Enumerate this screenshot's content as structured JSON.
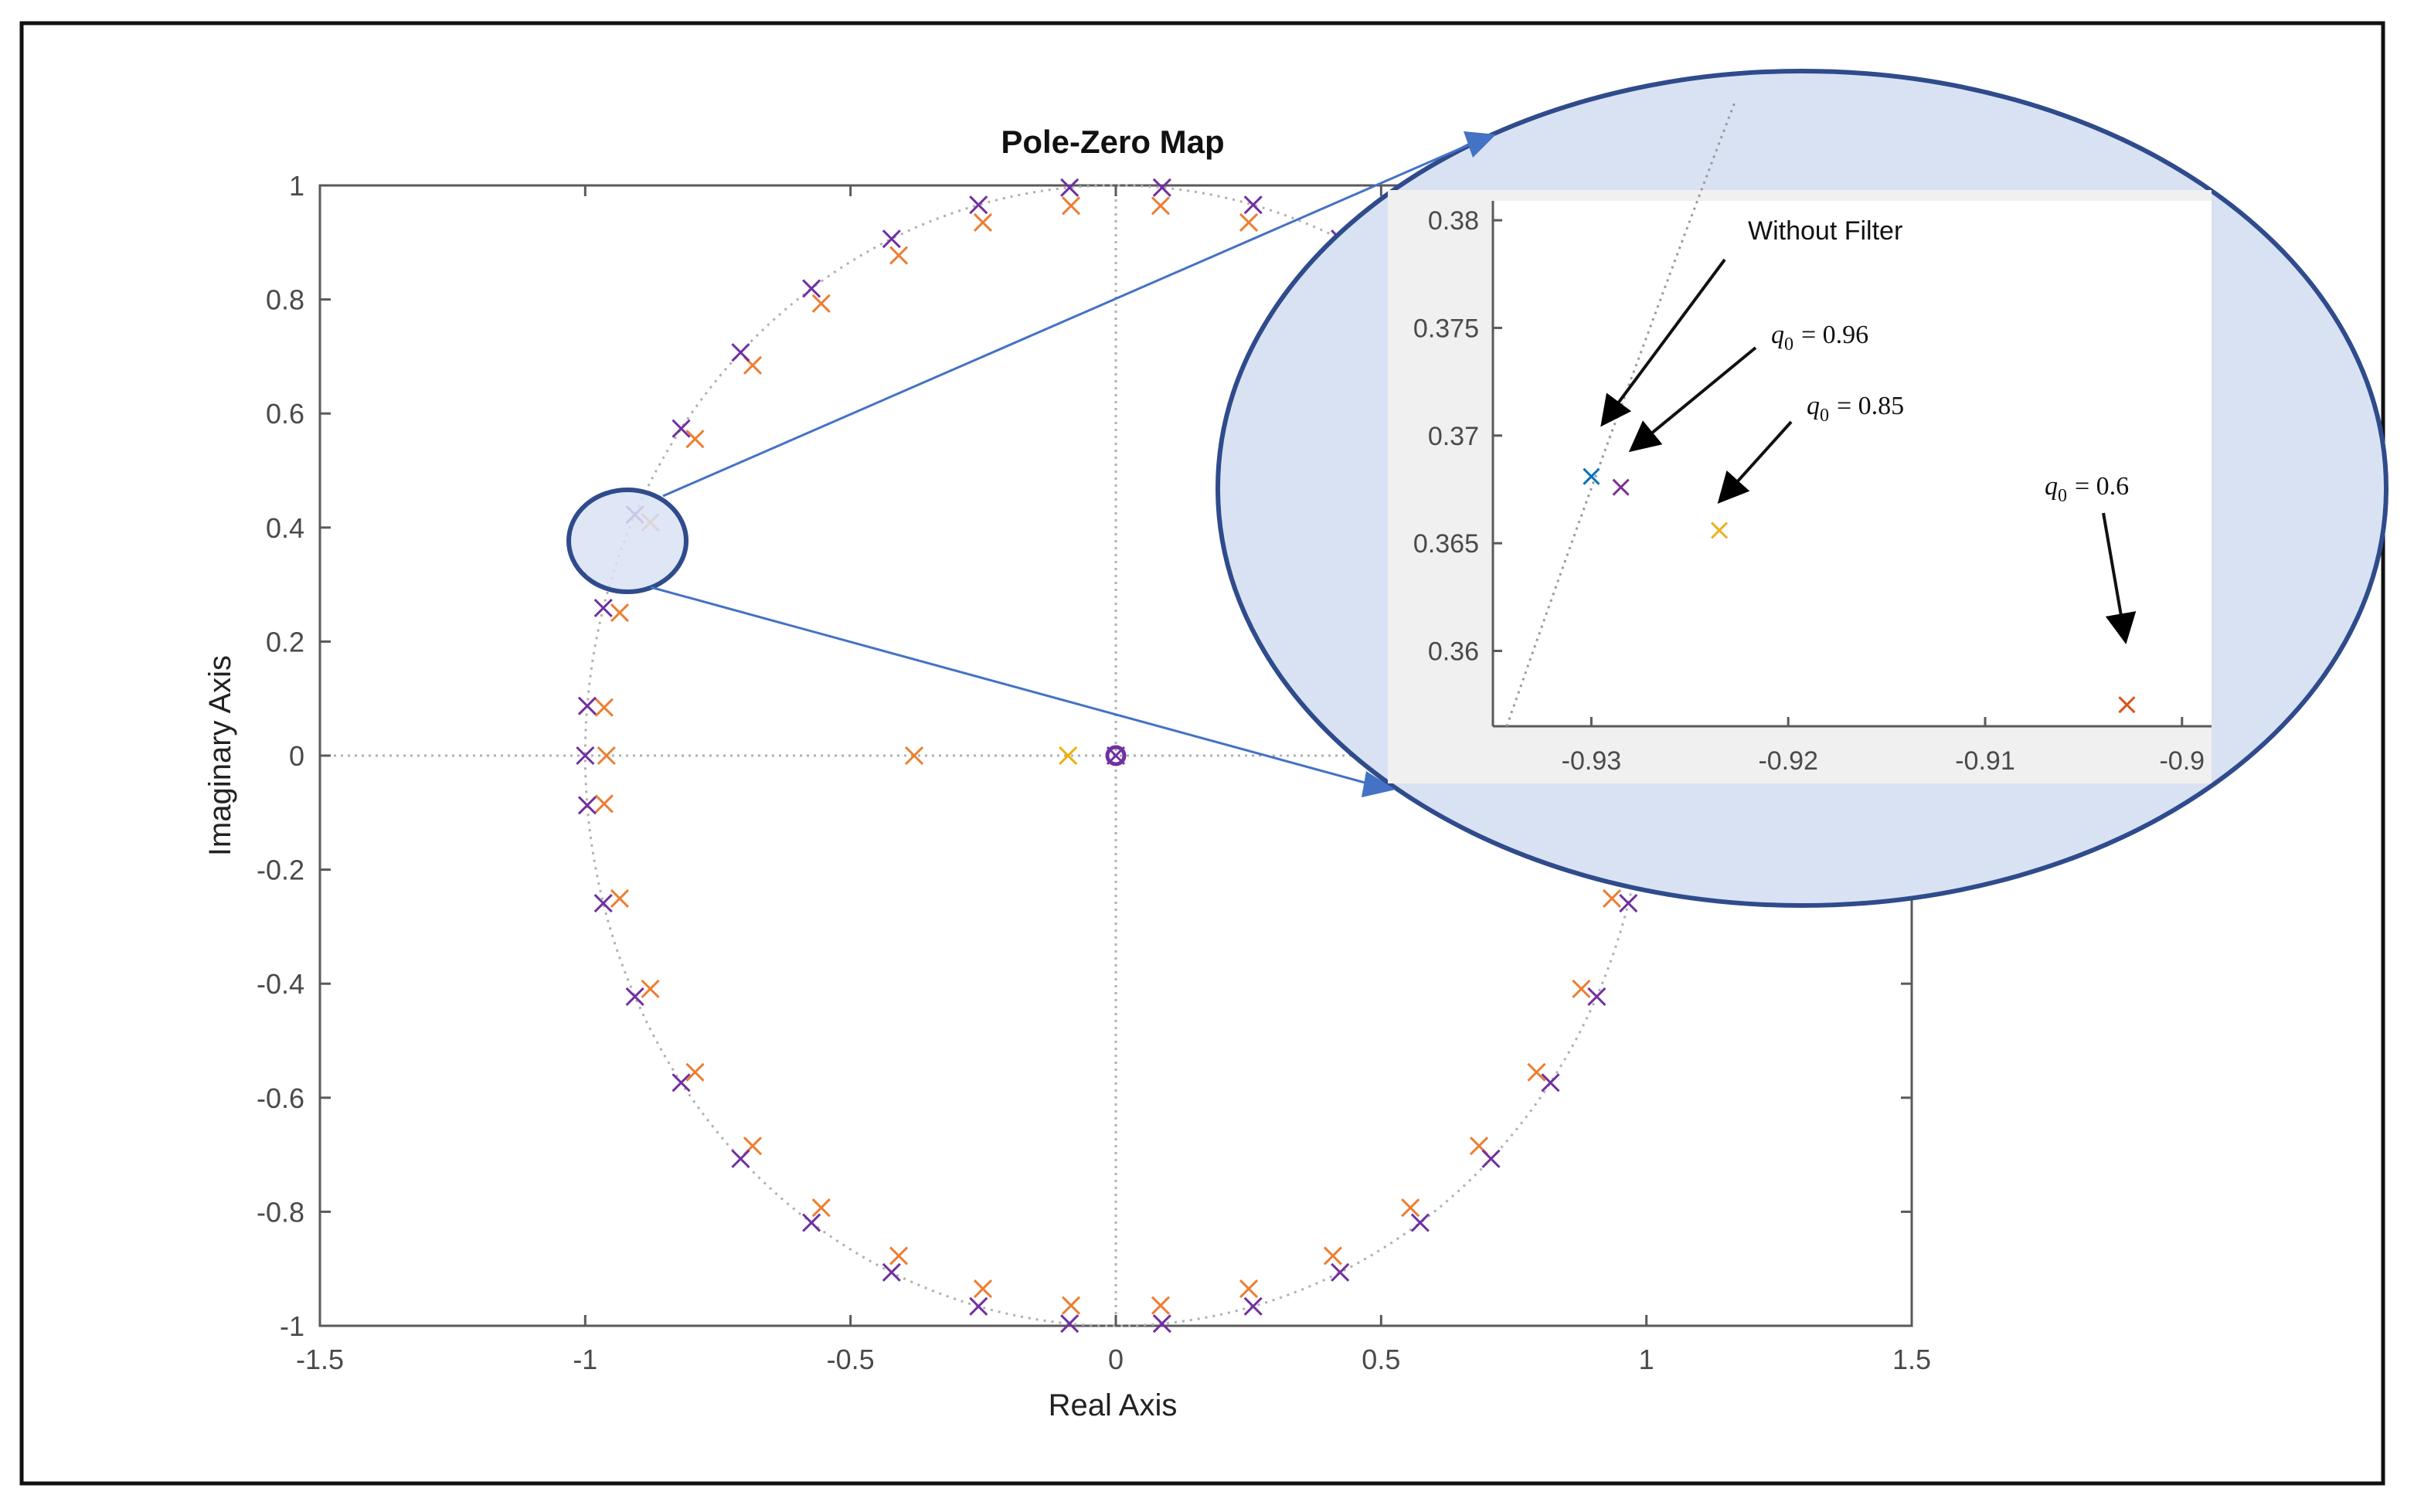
{
  "chart_data": {
    "type": "scatter",
    "title": "Pole-Zero Map",
    "xlabel": "Real Axis",
    "ylabel": "Imaginary Axis",
    "xlim": [
      -1.5,
      1.5
    ],
    "ylim": [
      -1,
      1
    ],
    "xticks": [
      "-1.5",
      "-1",
      "-0.5",
      "0",
      "0.5",
      "1",
      "1.5"
    ],
    "yticks": [
      "-1",
      "-0.8",
      "-0.6",
      "-0.4",
      "-0.2",
      "0",
      "0.2",
      "0.4",
      "0.6",
      "0.8",
      "1"
    ],
    "grid": "dotted lines at x=0 and y=0 with unit circle",
    "series": [
      {
        "color": "#7030A0",
        "marker": "x",
        "angles_deg": [
          5,
          15,
          25,
          35,
          45,
          55,
          65,
          75,
          85,
          95,
          105,
          115,
          125,
          135,
          145,
          155,
          165,
          175,
          180,
          185,
          195,
          205,
          215,
          225,
          235,
          245,
          255,
          265,
          275,
          285,
          295,
          305,
          315,
          325,
          335,
          345,
          355
        ],
        "extra_points": [
          [
            0.0,
            0.0
          ]
        ]
      },
      {
        "color": "#ED7D31",
        "marker": "x",
        "angles_deg": [
          5,
          15,
          25,
          35,
          45,
          55,
          65,
          75,
          85,
          95,
          105,
          115,
          125,
          135,
          145,
          155,
          165,
          175,
          185,
          195,
          205,
          215,
          225,
          235,
          245,
          255,
          265,
          275,
          285,
          295,
          305,
          315,
          325,
          335,
          345,
          355
        ],
        "radius": 0.968,
        "extra_points": [
          [
            -0.96,
            0.0
          ],
          [
            -0.38,
            0.0
          ]
        ]
      },
      {
        "color": "#F0B000",
        "marker": "x",
        "extra_points": [
          [
            -0.09,
            0.0
          ]
        ]
      }
    ],
    "zero": {
      "x": 0.0,
      "y": 0.0,
      "marker": "o",
      "color": "#7030A0"
    },
    "inset": {
      "xlim": [
        -0.935,
        -0.8985
      ],
      "ylim": [
        0.3565,
        0.3809
      ],
      "xticks": [
        "-0.93",
        "-0.92",
        "-0.91",
        "-0.9"
      ],
      "yticks": [
        "0.36",
        "0.365",
        "0.37",
        "0.375",
        "0.38"
      ],
      "points": [
        {
          "x": -0.93,
          "y": 0.3681,
          "color": "#0072BD"
        },
        {
          "x": -0.9285,
          "y": 0.3676,
          "color": "#7E2F8E"
        },
        {
          "x": -0.9235,
          "y": 0.3656,
          "color": "#EDB120"
        },
        {
          "x": -0.9028,
          "y": 0.3575,
          "color": "#D95319"
        }
      ],
      "annotations": {
        "without_filter": "Without Filter",
        "q096_sym": "q",
        "q096_sub": "0",
        "q096_val": "= 0.96",
        "q085_sym": "q",
        "q085_sub": "0",
        "q085_val": "= 0.85",
        "q06_sym": "q",
        "q06_sub": "0",
        "q06_val": "= 0.6"
      }
    },
    "colors": {
      "axes": "#5a5a5a",
      "bubble_fill": "#D9E2F3",
      "bubble_stroke": "#2F4B8C",
      "connector": "#4472C4",
      "inset_bg": "#F0F0F0"
    }
  }
}
